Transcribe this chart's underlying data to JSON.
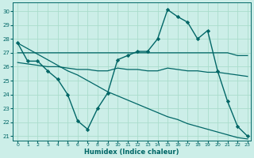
{
  "xlabel": "Humidex (Indice chaleur)",
  "background_color": "#cceee8",
  "grid_color": "#aaddcc",
  "line_color": "#006666",
  "xlim": [
    -0.5,
    23.3
  ],
  "ylim": [
    20.7,
    30.6
  ],
  "yticks": [
    21,
    22,
    23,
    24,
    25,
    26,
    27,
    28,
    29,
    30
  ],
  "xticks": [
    0,
    1,
    2,
    3,
    4,
    5,
    6,
    7,
    8,
    9,
    10,
    11,
    12,
    13,
    14,
    15,
    16,
    17,
    18,
    19,
    20,
    21,
    22,
    23
  ],
  "series": [
    {
      "x": [
        0,
        1,
        2,
        3,
        4,
        5,
        6,
        7,
        8,
        9,
        10,
        11,
        12,
        13,
        14,
        15,
        16,
        17,
        18,
        19,
        20,
        21,
        22,
        23
      ],
      "y": [
        27.7,
        26.4,
        26.4,
        25.7,
        25.1,
        24.0,
        22.1,
        21.5,
        23.0,
        24.1,
        26.5,
        26.8,
        27.1,
        27.1,
        28.0,
        30.1,
        29.6,
        29.2,
        28.0,
        28.6,
        25.7,
        23.5,
        21.7,
        21.0
      ],
      "marker": "D",
      "markersize": 2.2,
      "linewidth": 1.0
    },
    {
      "x": [
        0,
        1,
        2,
        3,
        4,
        5,
        6,
        7,
        8,
        9,
        10,
        11,
        12,
        13,
        14,
        15,
        16,
        17,
        18,
        19,
        20,
        21,
        22,
        23
      ],
      "y": [
        27.0,
        27.0,
        27.0,
        27.0,
        27.0,
        27.0,
        27.0,
        27.0,
        27.0,
        27.0,
        27.0,
        27.0,
        27.0,
        27.0,
        27.0,
        27.0,
        27.0,
        27.0,
        27.0,
        27.0,
        27.0,
        27.0,
        26.8,
        26.8
      ],
      "marker": null,
      "markersize": 0,
      "linewidth": 0.9
    },
    {
      "x": [
        0,
        1,
        2,
        3,
        4,
        5,
        6,
        7,
        8,
        9,
        10,
        11,
        12,
        13,
        14,
        15,
        16,
        17,
        18,
        19,
        20,
        21,
        22,
        23
      ],
      "y": [
        26.3,
        26.2,
        26.1,
        26.0,
        26.0,
        25.9,
        25.8,
        25.8,
        25.7,
        25.7,
        25.9,
        25.8,
        25.8,
        25.7,
        25.7,
        25.9,
        25.8,
        25.7,
        25.7,
        25.6,
        25.6,
        25.5,
        25.4,
        25.3
      ],
      "marker": null,
      "markersize": 0,
      "linewidth": 0.9
    },
    {
      "x": [
        0,
        1,
        2,
        3,
        4,
        5,
        6,
        7,
        8,
        9,
        10,
        11,
        12,
        13,
        14,
        15,
        16,
        17,
        18,
        19,
        20,
        21,
        22,
        23
      ],
      "y": [
        27.7,
        27.3,
        26.9,
        26.5,
        26.1,
        25.7,
        25.4,
        25.0,
        24.6,
        24.2,
        23.9,
        23.6,
        23.3,
        23.0,
        22.7,
        22.4,
        22.2,
        21.9,
        21.7,
        21.5,
        21.3,
        21.1,
        20.9,
        20.8
      ],
      "marker": null,
      "markersize": 0,
      "linewidth": 0.9
    }
  ]
}
